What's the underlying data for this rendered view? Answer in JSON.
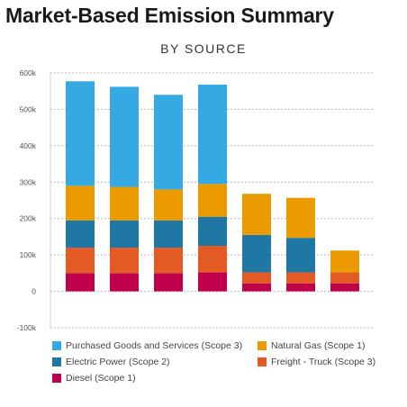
{
  "title": "Market-Based Emission Summary",
  "subtitle": "BY SOURCE",
  "chart_data": {
    "type": "bar",
    "stacked": true,
    "categories": [
      "",
      "",
      "",
      "",
      "",
      "",
      ""
    ],
    "ylim": [
      -100000,
      600000
    ],
    "yticks": [
      {
        "value": -100000,
        "label": "-100k"
      },
      {
        "value": 0,
        "label": "0"
      },
      {
        "value": 100000,
        "label": "100k"
      },
      {
        "value": 200000,
        "label": "200k"
      },
      {
        "value": 300000,
        "label": "300k"
      },
      {
        "value": 400000,
        "label": "400k"
      },
      {
        "value": 500000,
        "label": "500k"
      },
      {
        "value": 600000,
        "label": "600k"
      }
    ],
    "grid": true,
    "legend_position": "bottom",
    "series": [
      {
        "name": "Diesel (Scope 1)",
        "color": "#c0004a",
        "values": [
          50000,
          50000,
          50000,
          52000,
          22000,
          22000,
          22000
        ]
      },
      {
        "name": "Freight - Truck (Scope 3)",
        "color": "#e35a25",
        "values": [
          70000,
          70000,
          70000,
          73000,
          30000,
          30000,
          30000
        ]
      },
      {
        "name": "Electric Power (Scope 2)",
        "color": "#1f77a4",
        "values": [
          75000,
          75000,
          75000,
          80000,
          103000,
          95000,
          0
        ]
      },
      {
        "name": "Natural Gas (Scope 1)",
        "color": "#eb9a00",
        "values": [
          95000,
          92000,
          85000,
          90000,
          113000,
          110000,
          60000
        ]
      },
      {
        "name": "Purchased Goods and Services (Scope 3)",
        "color": "#35a9e1",
        "values": [
          287000,
          275000,
          260000,
          273000,
          0,
          0,
          0
        ]
      }
    ]
  },
  "legend": [
    {
      "label": "Purchased Goods and Services (Scope 3)",
      "color": "#35a9e1"
    },
    {
      "label": "Natural Gas (Scope 1)",
      "color": "#eb9a00"
    },
    {
      "label": "Electric Power (Scope 2)",
      "color": "#1f77a4"
    },
    {
      "label": "Freight - Truck (Scope 3)",
      "color": "#e35a25"
    },
    {
      "label": "Diesel (Scope 1)",
      "color": "#c0004a"
    }
  ]
}
